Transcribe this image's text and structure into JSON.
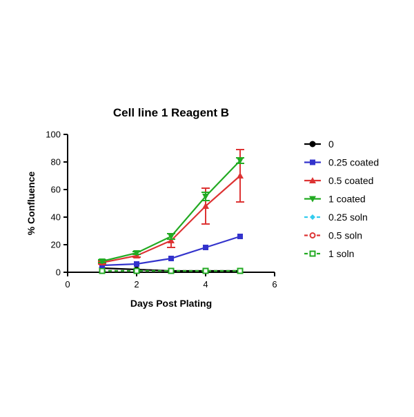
{
  "chart_data": {
    "type": "line",
    "title": "Cell line 1 Reagent B",
    "xlabel": "Days Post Plating",
    "ylabel": "% Confluence",
    "xlim": [
      0,
      6
    ],
    "ylim": [
      0,
      100
    ],
    "xticks": [
      "0",
      "2",
      "4",
      "6"
    ],
    "yticks": [
      "0",
      "20",
      "40",
      "60",
      "80",
      "100"
    ],
    "grid": false,
    "legend_position": "right",
    "x": [
      1,
      2,
      3,
      4,
      5
    ],
    "series": [
      {
        "name": "0",
        "values": [
          3,
          2,
          1,
          1,
          1
        ],
        "error": [
          0,
          0,
          0,
          0,
          0
        ],
        "color": "#000000",
        "marker": "circle-filled",
        "dashed": false
      },
      {
        "name": "0.25 coated",
        "values": [
          5,
          6,
          10,
          18,
          26
        ],
        "error": [
          0,
          0,
          0,
          0,
          0
        ],
        "color": "#3333cc",
        "marker": "square-filled",
        "dashed": false
      },
      {
        "name": "0.5 coated",
        "values": [
          7,
          12,
          23,
          48,
          70
        ],
        "error": [
          1,
          1,
          5,
          13,
          19
        ],
        "color": "#dd3333",
        "marker": "triangle-up-filled",
        "dashed": false
      },
      {
        "name": "1 coated",
        "values": [
          8,
          14,
          26,
          55,
          81
        ],
        "error": [
          1,
          1,
          2,
          3,
          2
        ],
        "color": "#22aa22",
        "marker": "triangle-down-filled",
        "dashed": false
      },
      {
        "name": "0.25 soln",
        "values": [
          1,
          1,
          1,
          1,
          1
        ],
        "error": [
          0,
          0,
          0,
          0,
          0
        ],
        "color": "#33ccee",
        "marker": "diamond-filled",
        "dashed": true
      },
      {
        "name": "0.5 soln",
        "values": [
          1,
          1,
          1,
          1,
          1
        ],
        "error": [
          0,
          0,
          0,
          0,
          0
        ],
        "color": "#dd3333",
        "marker": "circle-open",
        "dashed": true
      },
      {
        "name": "1 soln",
        "values": [
          1,
          1,
          1,
          1,
          1
        ],
        "error": [
          0,
          0,
          0,
          0,
          0
        ],
        "color": "#22aa22",
        "marker": "square-open",
        "dashed": true
      }
    ]
  }
}
